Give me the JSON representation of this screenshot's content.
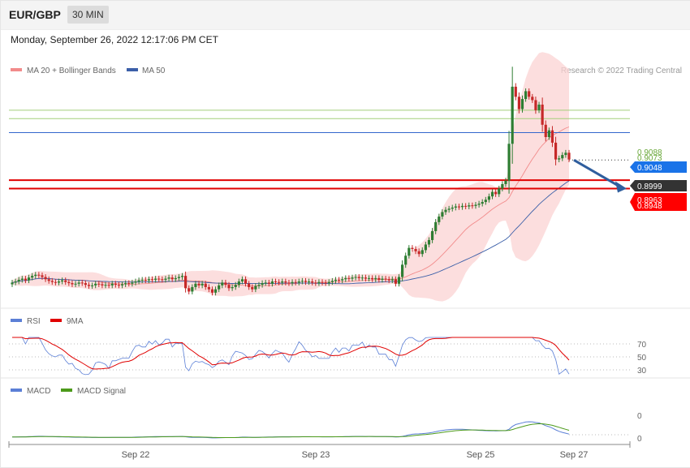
{
  "header": {
    "symbol": "EUR/GBP",
    "timeframe": "30 MIN",
    "datetime": "Monday, September 26, 2022 12:17:06 PM CET"
  },
  "credit": "Research © 2022 Trading Central",
  "colors": {
    "candle_up": "#2e7d32",
    "candle_down": "#c62828",
    "bands": "#fbd3d3",
    "ma20": "#f28b8b",
    "ma50": "#3b5fa8",
    "rsi": "#5b7fd6",
    "rsi_ma": "#e00000",
    "macd": "#5b7fd6",
    "macd_signal": "#4c9a1a",
    "support": "#e00000",
    "resistance": "#a3cf7a",
    "pivot": "#3366cc",
    "arrow": "#2f5e9e"
  },
  "chart_data": [
    {
      "type": "line",
      "panel": "price",
      "legend": [
        {
          "name": "MA 20 + Bollinger Bands",
          "color": "#f28b8b"
        },
        {
          "name": "MA 50",
          "color": "#3b5fa8"
        }
      ],
      "x_ticks": [
        "Sep 22",
        "Sep 23",
        "Sep 25",
        "Sep 27"
      ],
      "ylim": [
        0.874,
        0.914
      ],
      "levels": [
        {
          "value": 0.9088,
          "label": "0.9088",
          "kind": "resistance"
        },
        {
          "value": 0.9073,
          "label": "0.9073",
          "kind": "resistance"
        },
        {
          "value": 0.9048,
          "label": "0.9048",
          "kind": "pivot"
        },
        {
          "value": 0.8963,
          "label": "0.8963",
          "kind": "support"
        },
        {
          "value": 0.8948,
          "label": "0.8948",
          "kind": "support"
        }
      ],
      "last_price": {
        "value": 0.8999,
        "label": "0.8999"
      },
      "forecast": {
        "from": 0.8999,
        "to": 0.8948
      },
      "candles_close": [
        0.878,
        0.8782,
        0.8785,
        0.8787,
        0.8784,
        0.8789,
        0.8792,
        0.8794,
        0.8793,
        0.879,
        0.8786,
        0.8783,
        0.8781,
        0.878,
        0.8782,
        0.8784,
        0.8781,
        0.8779,
        0.8777,
        0.8778,
        0.878,
        0.8779,
        0.8776,
        0.8774,
        0.8775,
        0.8778,
        0.8777,
        0.8775,
        0.8776,
        0.8775,
        0.8778,
        0.8776,
        0.8775,
        0.8777,
        0.8779,
        0.8778,
        0.878,
        0.8782,
        0.8784,
        0.8785,
        0.8784,
        0.8786,
        0.8785,
        0.8787,
        0.8786,
        0.8785,
        0.8787,
        0.8789,
        0.8786,
        0.8788,
        0.879,
        0.8792,
        0.877,
        0.8764,
        0.8772,
        0.8778,
        0.8775,
        0.8778,
        0.8772,
        0.8768,
        0.8762,
        0.8768,
        0.8775,
        0.878,
        0.8776,
        0.877,
        0.8772,
        0.8776,
        0.8782,
        0.8786,
        0.8778,
        0.8772,
        0.8768,
        0.8774,
        0.8776,
        0.8779,
        0.878,
        0.8778,
        0.8782,
        0.8781,
        0.878,
        0.8782,
        0.878,
        0.8779,
        0.8781,
        0.878,
        0.8782,
        0.8783,
        0.8781,
        0.8782,
        0.878,
        0.8779,
        0.8781,
        0.878,
        0.8779,
        0.8781,
        0.8783,
        0.8785,
        0.8784,
        0.8786,
        0.8788,
        0.8787,
        0.8789,
        0.879,
        0.8788,
        0.8789,
        0.8787,
        0.8788,
        0.8786,
        0.8788,
        0.8785,
        0.8787,
        0.8786,
        0.8784,
        0.8786,
        0.8778,
        0.879,
        0.8812,
        0.8828,
        0.8842,
        0.884,
        0.8836,
        0.8831,
        0.8838,
        0.8848,
        0.8856,
        0.8872,
        0.8888,
        0.8898,
        0.8906,
        0.891,
        0.8912,
        0.8914,
        0.8916,
        0.8915,
        0.8917,
        0.8916,
        0.8918,
        0.8917,
        0.8919,
        0.8921,
        0.8924,
        0.8928,
        0.8934,
        0.8942,
        0.8938,
        0.8948,
        0.8956,
        0.8962,
        0.9028,
        0.913,
        0.9112,
        0.909,
        0.9108,
        0.9122,
        0.9112,
        0.9106,
        0.9088,
        0.9098,
        0.9062,
        0.904,
        0.9052,
        0.903,
        0.9,
        0.9002,
        0.9008,
        0.9012,
        0.9
      ],
      "ma20_last": 0.908,
      "ma50_last": 0.8958
    },
    {
      "type": "line",
      "panel": "rsi",
      "series": [
        {
          "name": "RSI",
          "color": "#5b7fd6"
        },
        {
          "name": "9MA",
          "color": "#e00000"
        }
      ],
      "y_ticks": [
        "70",
        "50",
        "30"
      ],
      "ylim": [
        20,
        80
      ]
    },
    {
      "type": "line",
      "panel": "macd",
      "series": [
        {
          "name": "MACD",
          "color": "#5b7fd6"
        },
        {
          "name": "MACD Signal",
          "color": "#4c9a1a"
        }
      ],
      "y_ticks": [
        "0",
        "0"
      ]
    }
  ]
}
